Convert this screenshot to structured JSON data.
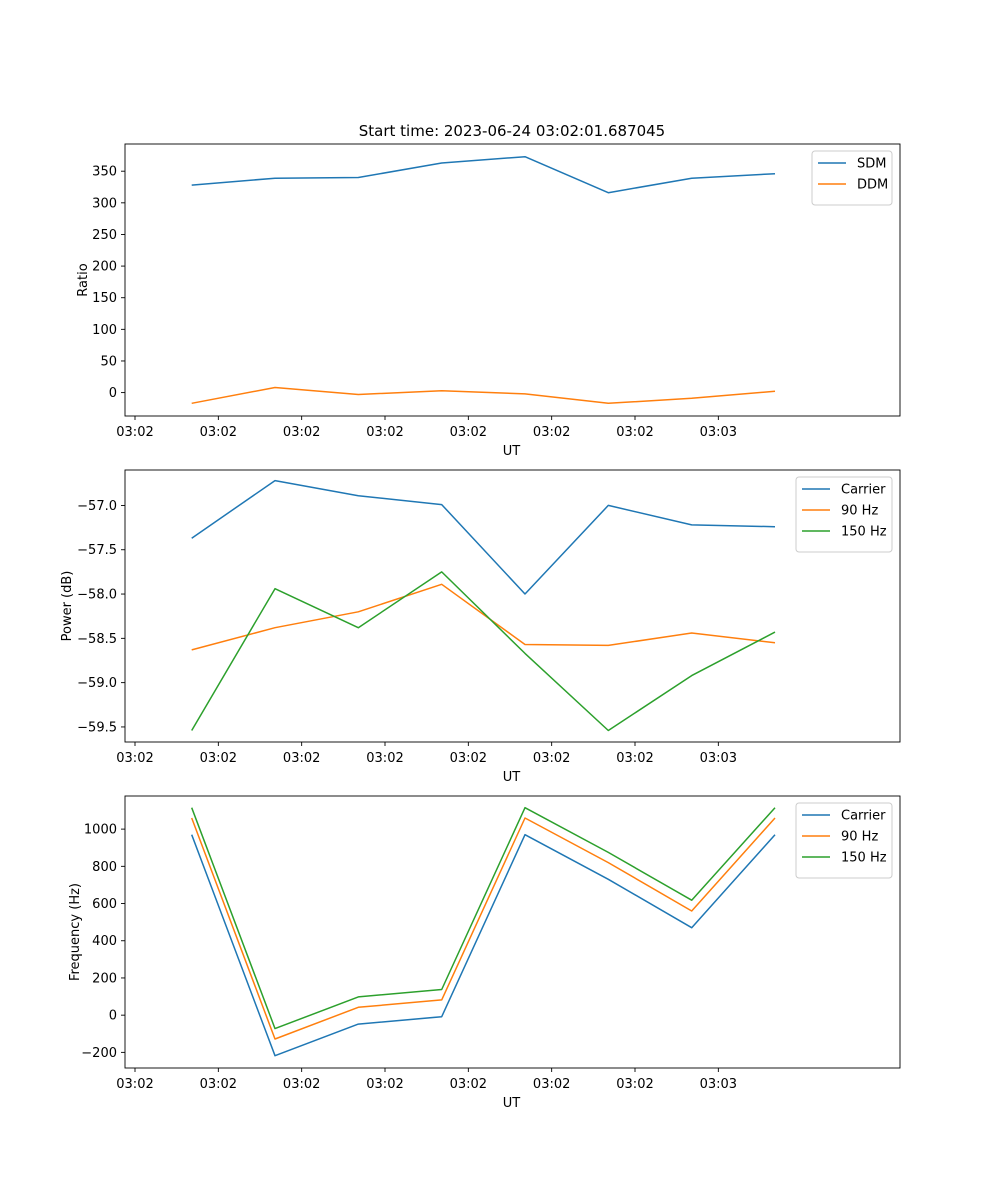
{
  "figure": {
    "title": "Start time: 2023-06-24 03:02:01.687045"
  },
  "chart_data": [
    {
      "type": "line",
      "xlabel": "UT",
      "ylabel": "Ratio",
      "x_tick_labels": [
        "03:02",
        "03:02",
        "03:02",
        "03:02",
        "03:02",
        "03:02",
        "03:02"
      ],
      "x_tick_last": "03:03",
      "x": [
        1,
        2,
        3,
        4,
        5,
        6,
        7,
        8
      ],
      "xlim": [
        0.2,
        9.5
      ],
      "ylim": [
        -37,
        393
      ],
      "yticks": [
        0,
        50,
        100,
        150,
        200,
        250,
        300,
        350
      ],
      "legend": "top-right",
      "grid": false,
      "series": [
        {
          "name": "SDM",
          "color": "#1f77b4",
          "values": [
            328,
            339,
            340,
            363,
            373,
            316,
            339,
            346
          ]
        },
        {
          "name": "DDM",
          "color": "#ff7f0e",
          "values": [
            -17,
            8,
            -3,
            3,
            -2,
            -17,
            -9,
            2
          ]
        }
      ]
    },
    {
      "type": "line",
      "xlabel": "UT",
      "ylabel": "Power (dB)",
      "x_tick_labels": [
        "03:02",
        "03:02",
        "03:02",
        "03:02",
        "03:02",
        "03:02",
        "03:02"
      ],
      "x_tick_last": "03:03",
      "x": [
        1,
        2,
        3,
        4,
        5,
        6,
        7,
        8
      ],
      "xlim": [
        0.2,
        9.5
      ],
      "ylim": [
        -59.67,
        -56.6
      ],
      "yticks": [
        -59.5,
        -59.0,
        -58.5,
        -58.0,
        -57.5,
        -57.0
      ],
      "ytick_labels": [
        "−59.5",
        "−59.0",
        "−58.5",
        "−58.0",
        "−57.5",
        "−57.0"
      ],
      "legend": "top-right",
      "grid": false,
      "series": [
        {
          "name": "Carrier",
          "color": "#1f77b4",
          "values": [
            -57.37,
            -56.72,
            -56.89,
            -56.99,
            -58.0,
            -57.0,
            -57.22,
            -57.24
          ]
        },
        {
          "name": "90 Hz",
          "color": "#ff7f0e",
          "values": [
            -58.63,
            -58.38,
            -58.2,
            -57.89,
            -58.57,
            -58.58,
            -58.44,
            -58.55
          ]
        },
        {
          "name": "150 Hz",
          "color": "#2ca02c",
          "values": [
            -59.54,
            -57.94,
            -58.38,
            -57.75,
            -58.67,
            -59.54,
            -58.92,
            -58.43
          ]
        }
      ]
    },
    {
      "type": "line",
      "xlabel": "UT",
      "ylabel": "Frequency (Hz)",
      "x_tick_labels": [
        "03:02",
        "03:02",
        "03:02",
        "03:02",
        "03:02",
        "03:02",
        "03:02"
      ],
      "x_tick_last": "03:03",
      "x": [
        1,
        2,
        3,
        4,
        5,
        6,
        7,
        8
      ],
      "xlim": [
        0.2,
        9.5
      ],
      "ylim": [
        -284,
        1178
      ],
      "yticks": [
        -200,
        0,
        200,
        400,
        600,
        800,
        1000
      ],
      "ytick_labels": [
        "−200",
        "0",
        "200",
        "400",
        "600",
        "800",
        "1000"
      ],
      "legend": "top-right",
      "grid": false,
      "series": [
        {
          "name": "Carrier",
          "color": "#1f77b4",
          "values": [
            970,
            -218,
            -48,
            -8,
            970,
            730,
            470,
            970
          ]
        },
        {
          "name": "90 Hz",
          "color": "#ff7f0e",
          "values": [
            1060,
            -128,
            42,
            82,
            1060,
            820,
            560,
            1060
          ]
        },
        {
          "name": "150 Hz",
          "color": "#2ca02c",
          "values": [
            1115,
            -72,
            98,
            138,
            1115,
            875,
            618,
            1115
          ]
        }
      ]
    }
  ]
}
